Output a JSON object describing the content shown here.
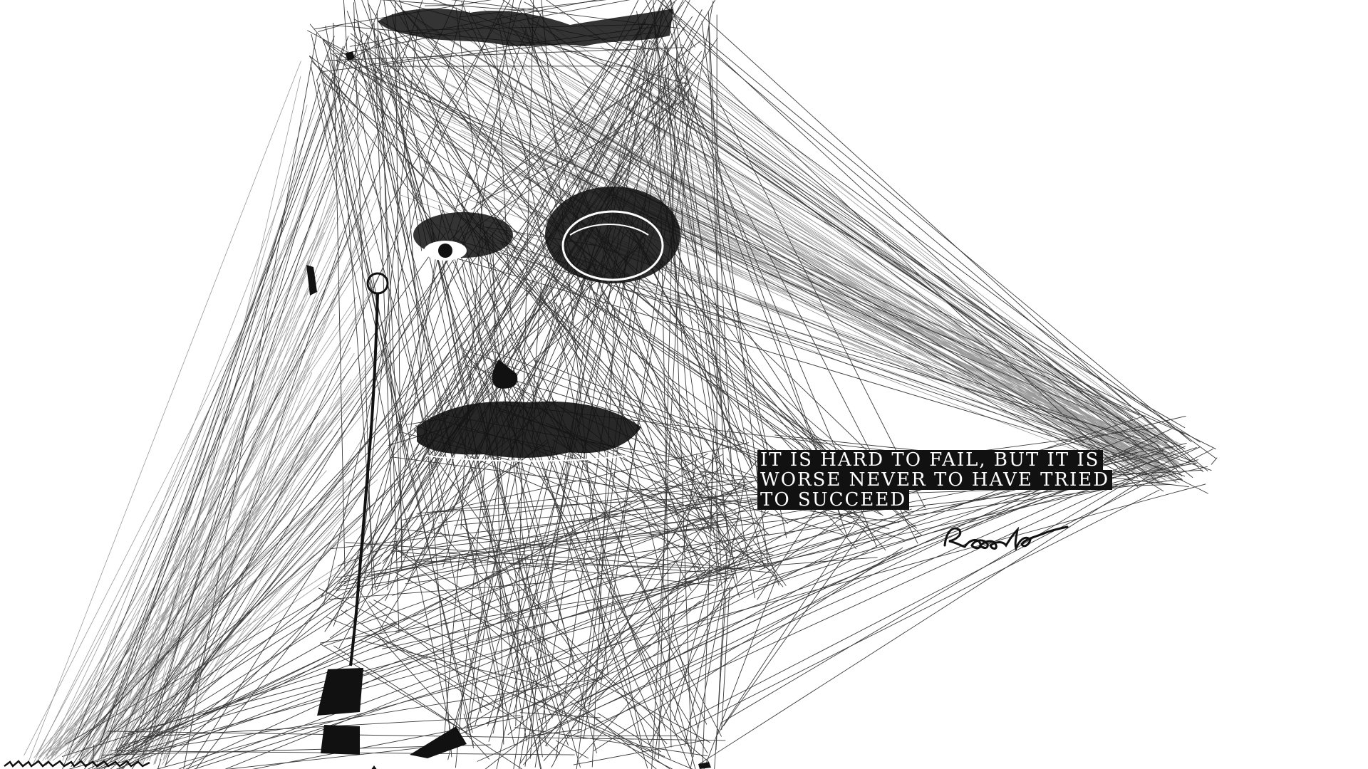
{
  "artwork": {
    "background_color": "#ffffff",
    "ink_color": "#111111",
    "line_color": "#3a3a3a",
    "faint_line_color": "#9a9a9a"
  },
  "quote": {
    "lines": [
      "IT IS HARD TO FAIL, BUT IT IS",
      "WORSE NEVER TO HAVE TRIED",
      "TO SUCCEED"
    ],
    "signature": "Roosevelt"
  }
}
